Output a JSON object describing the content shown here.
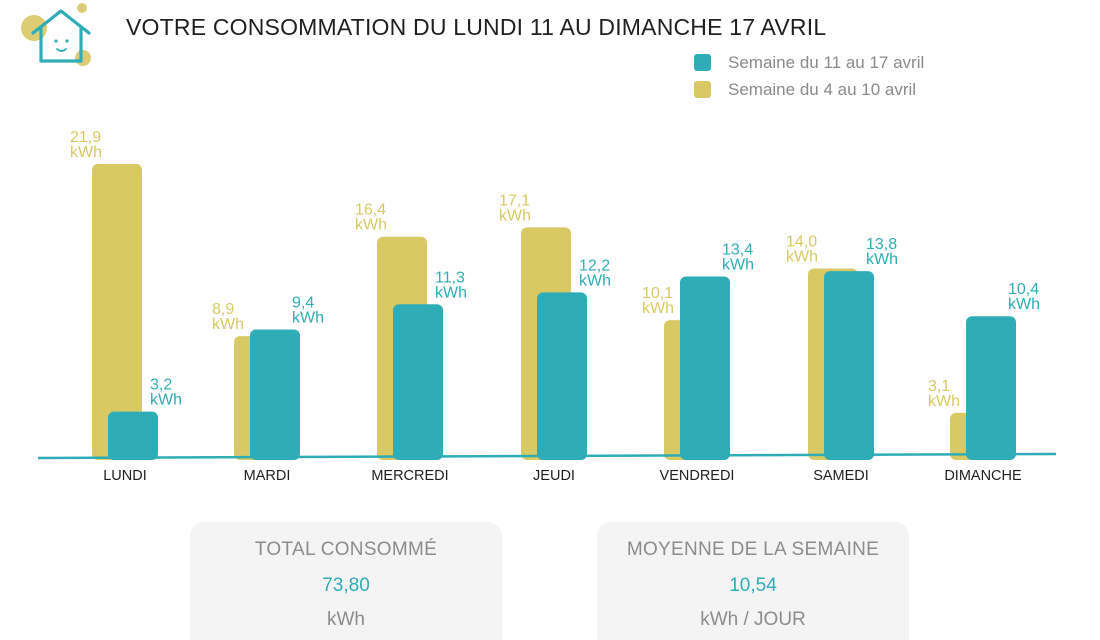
{
  "header": {
    "title": "VOTRE CONSOMMATION DU LUNDI 11 AU DIMANCHE 17 AVRIL"
  },
  "colors": {
    "current_week": "#2eadb6",
    "previous_week": "#d8c964",
    "axis": "#2eadb6",
    "logo_circles": "#dccd74"
  },
  "logo": {
    "icon": "house-face-icon"
  },
  "chart_data": {
    "type": "bar",
    "categories": [
      "LUNDI",
      "MARDI",
      "MERCREDI",
      "JEUDI",
      "VENDREDI",
      "SAMEDI",
      "DIMANCHE"
    ],
    "series": [
      {
        "name": "Semaine du 4 au 10 avril",
        "values": [
          21.9,
          8.9,
          16.4,
          17.1,
          10.1,
          14.0,
          3.1
        ],
        "labels": [
          "21,9",
          "8,9",
          "16,4",
          "17,1",
          "10,1",
          "14,0",
          "3,1"
        ]
      },
      {
        "name": "Semaine du 11 au 17 avril",
        "values": [
          3.2,
          9.4,
          11.3,
          12.2,
          13.4,
          13.8,
          10.4
        ],
        "labels": [
          "3,2",
          "9,4",
          "11,3",
          "12,2",
          "13,4",
          "13,8",
          "10,4"
        ]
      }
    ],
    "unit": "kWh",
    "ylim": [
      0,
      22
    ],
    "grid": false,
    "legend_position": "top-right"
  },
  "legend": [
    {
      "label": "Semaine du 11 au 17 avril",
      "color": "#2eadb6"
    },
    {
      "label": "Semaine du 4 au 10 avril",
      "color": "#d8c964"
    }
  ],
  "summary": {
    "total": {
      "title": "TOTAL CONSOMMÉ",
      "value": "73,80",
      "unit": "kWh"
    },
    "average": {
      "title": "MOYENNE DE LA SEMAINE",
      "value": "10,54",
      "unit": "kWh / JOUR"
    }
  }
}
